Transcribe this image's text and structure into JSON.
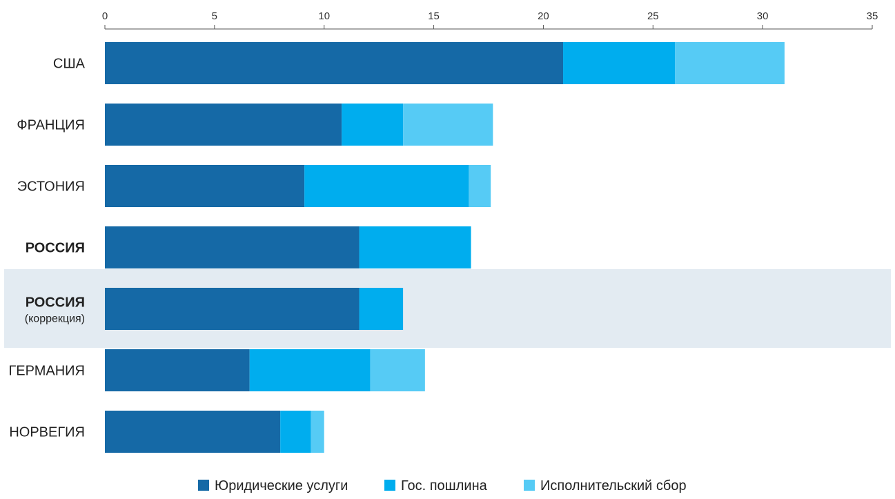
{
  "chart_data": {
    "type": "bar",
    "orientation": "horizontal",
    "stacked": true,
    "xlim": [
      0,
      35
    ],
    "xticks": [
      "0",
      "5",
      "10",
      "15",
      "20",
      "25",
      "30",
      "35"
    ],
    "xtick_values": [
      0,
      5,
      10,
      15,
      20,
      25,
      30,
      35
    ],
    "categories": [
      {
        "label": "США",
        "sub": "",
        "bold": false,
        "highlight": false
      },
      {
        "label": "ФРАНЦИЯ",
        "sub": "",
        "bold": false,
        "highlight": false
      },
      {
        "label": "ЭСТОНИЯ",
        "sub": "",
        "bold": false,
        "highlight": false
      },
      {
        "label": "РОССИЯ",
        "sub": "",
        "bold": true,
        "highlight": false
      },
      {
        "label": "РОССИЯ",
        "sub": "(коррекция)",
        "bold": true,
        "highlight": true
      },
      {
        "label": "ГЕРМАНИЯ",
        "sub": "",
        "bold": false,
        "highlight": false
      },
      {
        "label": "НОРВЕГИЯ",
        "sub": "",
        "bold": false,
        "highlight": false
      }
    ],
    "series": [
      {
        "name": "Юридические услуги",
        "color": "#1569a6",
        "values": [
          20.9,
          10.8,
          9.1,
          11.6,
          11.6,
          6.6,
          8.0
        ]
      },
      {
        "name": "Гос. пошлина",
        "color": "#00adee",
        "values": [
          5.1,
          2.8,
          7.5,
          5.1,
          2.0,
          5.5,
          1.4
        ]
      },
      {
        "name": "Исполнительский сбор",
        "color": "#56cbf5",
        "values": [
          5.0,
          4.1,
          1.0,
          0,
          0,
          2.5,
          0.6
        ]
      }
    ],
    "highlight_color": "#e3ebf2",
    "legend_position": "bottom",
    "grid": false
  }
}
